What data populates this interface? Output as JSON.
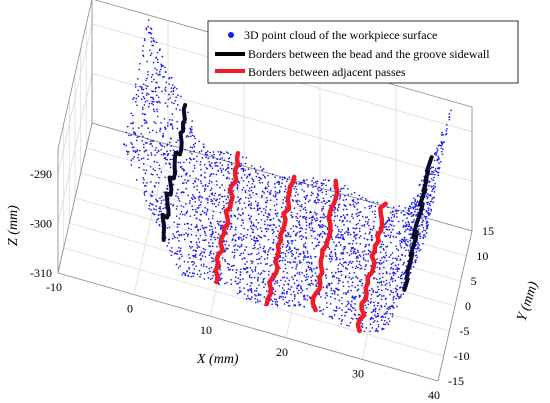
{
  "chart_data": {
    "type": "scatter",
    "title": "",
    "xlabel": "X (mm)",
    "ylabel": "Y (mm)",
    "zlabel": "Z (mm)",
    "xlim": [
      -10,
      40
    ],
    "ylim": [
      -15,
      15
    ],
    "zlim": [
      -310,
      -285
    ],
    "xticks": [
      "-10",
      "0",
      "10",
      "20",
      "30",
      "40"
    ],
    "yticks": [
      "-15",
      "-10",
      "-5",
      "0",
      "5",
      "10",
      "15"
    ],
    "zticks": [
      "-310",
      "-300",
      "-290"
    ],
    "grid": true,
    "legend_position": "top-right",
    "surface": {
      "x_range": [
        -2,
        38
      ],
      "y_range": [
        -11,
        11
      ],
      "groove_bottom_z": -308,
      "groove_edge_z": -285,
      "bottom_x_range": [
        6,
        32
      ]
    },
    "series": [
      {
        "name": "3D point cloud of the workpiece surface",
        "marker": "dot",
        "color": "#1c1cf0",
        "points": 3200
      },
      {
        "name": "Borders between the bead and the groove sidewall",
        "marker": "line",
        "color": "#0a0a28",
        "x_positions": [
          3,
          35
        ]
      },
      {
        "name": "Borders between adjacent passes",
        "marker": "line",
        "color": "#ee1c24",
        "x_positions": [
          10,
          17,
          23,
          29
        ]
      }
    ]
  }
}
